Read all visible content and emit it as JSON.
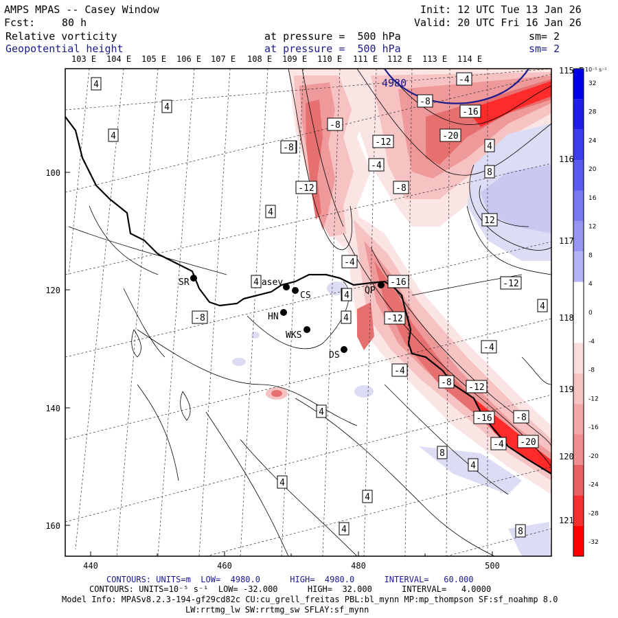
{
  "header": {
    "title": "AMPS MPAS -- Casey Window",
    "fcst_label": "Fcst:",
    "fcst_value": "80 h",
    "init": "Init: 12 UTC Tue 13 Jan 26",
    "valid": "Valid: 20 UTC Fri 16 Jan 26",
    "field1_name": "Relative vorticity",
    "field1_level": "at pressure =  500 hPa",
    "field1_sm": "sm= 2",
    "field2_name": "Geopotential height",
    "field2_level": "at pressure =  500 hPa",
    "field2_sm": "sm= 2"
  },
  "map": {
    "top_lon_labels": [
      "103 E",
      "104 E",
      "105 E",
      "106 E",
      "107 E",
      "108 E",
      "109 E",
      "110 E",
      "111 E",
      "112 E",
      "113 E",
      "114 E"
    ],
    "right_lon_labels": [
      "115 E",
      "116 E",
      "117 E",
      "118 E",
      "119 E",
      "120 E",
      "121 E"
    ],
    "x_ticks": [
      "440",
      "460",
      "480",
      "500"
    ],
    "y_ticks": [
      "100",
      "120",
      "140",
      "160"
    ],
    "stations": [
      {
        "name": "SR"
      },
      {
        "name": "Casey"
      },
      {
        "name": "CS"
      },
      {
        "name": "HN"
      },
      {
        "name": "WKS"
      },
      {
        "name": "DS"
      },
      {
        "name": "QP"
      }
    ],
    "contour_labels": [
      "4",
      "4",
      "4",
      "4",
      "-8",
      "-8",
      "-12",
      "-4",
      "-8",
      "-4",
      "-16",
      "-20",
      "-12",
      "4",
      "8",
      "12",
      "4",
      "-8",
      "-4",
      "-16",
      "-12",
      "-8",
      "4",
      "8",
      "4",
      "-4",
      "-12",
      "-4",
      "-8",
      "-12",
      "-16",
      "-8",
      "-20",
      "-4",
      "8",
      "4",
      "4",
      "4",
      "4",
      "4",
      "8",
      "4",
      "-8"
    ],
    "height_label": "4980"
  },
  "colorbar": {
    "units": "10⁻⁵ s⁻¹",
    "labels": [
      "32",
      "28",
      "24",
      "20",
      "16",
      "12",
      "8",
      "4",
      "0",
      "-4",
      "-8",
      "-12",
      "-16",
      "-20",
      "-24",
      "-28",
      "-32"
    ],
    "colors": {
      "blue_strong": "#0000e6",
      "blue_light": "#dcdcf5",
      "red_strong": "#ff0000",
      "red_light": "#fadcdc"
    }
  },
  "footer": {
    "line1": "CONTOURS: UNITS=m  LOW=  4980.0      HIGH=  4980.0      INTERVAL=   60.000",
    "line2": "CONTOURS: UNITS=10⁻⁵ s⁻¹  LOW= -32.000      HIGH=  32.000      INTERVAL=   4.0000",
    "line3": "Model Info: MPASv8.2.3-194-gf29cd82c CU:cu_grell_freitas PBL:bl_mynn MP:mp_thompson SF:sf_noahmp 8.0",
    "line4": "LW:rrtmg_lw SW:rrtmg_sw SFLAY:sf_mynn"
  }
}
